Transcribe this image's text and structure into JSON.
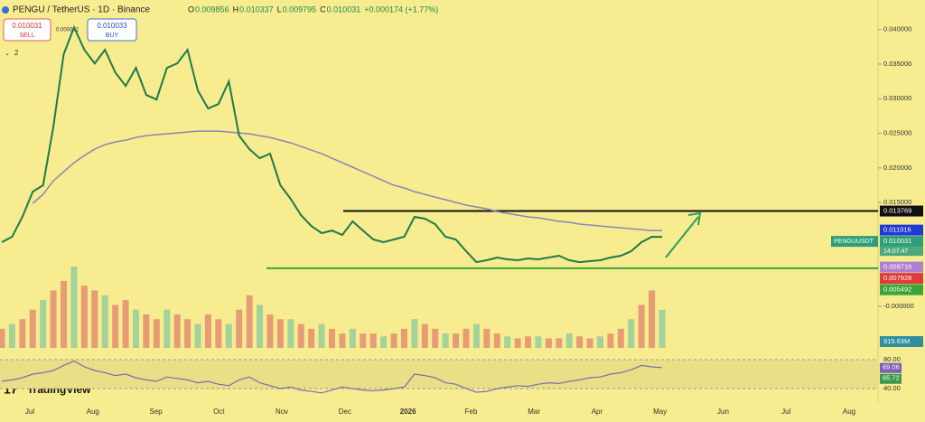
{
  "header": {
    "symbol": "PENGU / TetherUS · 1D · Binance",
    "ohlc": [
      {
        "key": "O",
        "value": "0.009856"
      },
      {
        "key": "H",
        "value": "0.010337"
      },
      {
        "key": "L",
        "value": "0.009795"
      },
      {
        "key": "C",
        "value": "0.010031"
      }
    ],
    "change": "+0.000174 (+1.77%)"
  },
  "trade": {
    "sell_price": "0.010031",
    "sell": "SELL",
    "spread": "0.000002",
    "buy_price": "0.010033",
    "buy": "BUY"
  },
  "indicators_count": "2",
  "logo": "TradingView",
  "chart_data": {
    "type": "line",
    "symbol_label": "PENGUUSDT",
    "countdown": "14:07:47",
    "ylim": [
      0,
      0.04426
    ],
    "yticks": [
      {
        "value": 0,
        "label": "-0.000000"
      },
      {
        "value": 0.015,
        "label": "0.015000"
      },
      {
        "value": 0.02,
        "label": "0.020000"
      },
      {
        "value": 0.025,
        "label": "0.025000"
      },
      {
        "value": 0.03,
        "label": "0.030000"
      },
      {
        "value": 0.035,
        "label": "0.035000"
      },
      {
        "value": 0.04,
        "label": "0.040000"
      }
    ],
    "xtick_labels": [
      "Jul",
      "Aug",
      "Sep",
      "Oct",
      "Nov",
      "Dec",
      "2026",
      "Feb",
      "Mar",
      "Apr",
      "May",
      "Jun",
      "Jul",
      "Aug"
    ],
    "price": {
      "color": "#1f7a4c",
      "values": [
        0.00927,
        0.01005,
        0.01292,
        0.01657,
        0.01749,
        0.02597,
        0.03641,
        0.04032,
        0.03706,
        0.0351,
        0.03706,
        0.0338,
        0.03184,
        0.03445,
        0.03054,
        0.02988,
        0.03445,
        0.0351,
        0.03706,
        0.03119,
        0.02858,
        0.02923,
        0.03249,
        0.02466,
        0.02271,
        0.0214,
        0.02205,
        0.01749,
        0.01553,
        0.01318,
        0.01161,
        0.01057,
        0.01096,
        0.01031,
        0.01227,
        0.01096,
        0.00966,
        0.00927,
        0.00966,
        0.01005,
        0.01292,
        0.01266,
        0.01188,
        0.01005,
        0.00966,
        0.00796,
        0.00639,
        0.00666,
        0.00705,
        0.00679,
        0.00666,
        0.00692,
        0.00679,
        0.00705,
        0.00731,
        0.00666,
        0.00639,
        0.00653,
        0.00666,
        0.00705,
        0.00731,
        0.00796,
        0.00927,
        0.01005,
        0.01003
      ]
    },
    "ma200": {
      "color": "#8a86b8",
      "values": [
        null,
        null,
        null,
        0.01488,
        0.01618,
        0.01814,
        0.01944,
        0.02075,
        0.02179,
        0.02271,
        0.02336,
        0.02375,
        0.02401,
        0.0244,
        0.02466,
        0.0248,
        0.02493,
        0.02506,
        0.02519,
        0.02532,
        0.02532,
        0.02532,
        0.02519,
        0.02506,
        0.02493,
        0.02466,
        0.0244,
        0.02401,
        0.02362,
        0.0231,
        0.02258,
        0.02205,
        0.0214,
        0.02075,
        0.0201,
        0.01944,
        0.01879,
        0.01814,
        0.01749,
        0.0171,
        0.01657,
        0.01618,
        0.01579,
        0.0154,
        0.01501,
        0.01462,
        0.01436,
        0.01409,
        0.0137,
        0.01344,
        0.01318,
        0.01292,
        0.01279,
        0.01253,
        0.01227,
        0.01214,
        0.01188,
        0.01175,
        0.01161,
        0.01148,
        0.01135,
        0.01122,
        0.01109,
        0.01096,
        0.01096
      ]
    },
    "levels": [
      {
        "value": 0.013769,
        "color": "#111111"
      },
      {
        "value": 0.005492,
        "color": "#3aa63a"
      }
    ],
    "price_labels": [
      {
        "value": 0.013769,
        "color": "#111111"
      },
      {
        "value": 0.011016,
        "color": "#1e3bd6"
      },
      {
        "value": 0.010031,
        "color": "#2e9e7a"
      },
      {
        "value": 0.008716,
        "color": "#b07fd0"
      },
      {
        "value": 0.007928,
        "color": "#e03a3a"
      },
      {
        "value": 0.005492,
        "color": "#3aa63a"
      }
    ],
    "volume": {
      "color": "#e07a6a",
      "values": [
        460,
        575,
        690,
        920,
        1150,
        1380,
        1610,
        1955,
        1495,
        1380,
        1265,
        1035,
        1150,
        920,
        805,
        690,
        920,
        805,
        690,
        575,
        805,
        690,
        575,
        920,
        1265,
        1035,
        805,
        690,
        690,
        575,
        460,
        575,
        460,
        345,
        460,
        345,
        345,
        276,
        345,
        460,
        690,
        575,
        460,
        345,
        345,
        460,
        575,
        460,
        345,
        276,
        230,
        276,
        276,
        230,
        230,
        345,
        276,
        230,
        276,
        345,
        460,
        690,
        1035,
        1380,
        915.63
      ],
      "value_labels_last": "915.63M"
    },
    "rsi": {
      "color": "#7b6fa8",
      "ylim": [
        27.5,
        87.5
      ],
      "yticks": [
        {
          "value": 80,
          "label": "80.00"
        },
        {
          "value": 40,
          "label": "40.00"
        }
      ],
      "values": [
        50,
        52,
        55,
        60,
        62,
        65,
        72,
        78,
        70,
        65,
        62,
        58,
        60,
        55,
        52,
        50,
        56,
        54,
        52,
        48,
        50,
        46,
        44,
        52,
        56,
        48,
        44,
        40,
        42,
        38,
        36,
        34,
        38,
        42,
        40,
        38,
        37,
        38,
        40,
        42,
        60,
        58,
        55,
        48,
        46,
        40,
        35,
        36,
        40,
        42,
        44,
        43,
        46,
        48,
        47,
        50,
        52,
        55,
        56,
        60,
        62,
        66,
        72,
        70,
        69.06
      ],
      "ma_last": 65.72
    }
  }
}
